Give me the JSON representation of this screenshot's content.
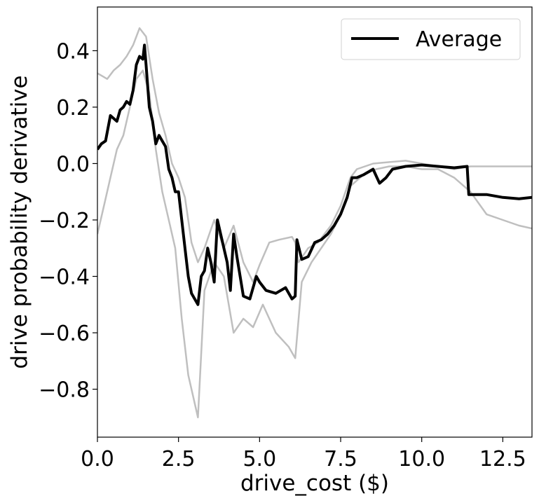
{
  "chart_data": {
    "type": "line",
    "xlabel": "drive_cost ($)",
    "ylabel": "drive probability derivative",
    "xlim": [
      0,
      13.4
    ],
    "ylim": [
      -0.97,
      0.555
    ],
    "xticks": [
      0.0,
      2.5,
      5.0,
      7.5,
      10.0,
      12.5
    ],
    "xtick_labels": [
      "0.0",
      "2.5",
      "5.0",
      "7.5",
      "10.0",
      "12.5"
    ],
    "yticks": [
      0.4,
      0.2,
      0.0,
      -0.2,
      -0.4,
      -0.6,
      -0.8
    ],
    "ytick_labels": [
      "0.4",
      "0.2",
      "0.0",
      "−0.2",
      "−0.4",
      "−0.6",
      "−0.8"
    ],
    "legend": {
      "position": "top-right",
      "entries": [
        "Average"
      ]
    },
    "grid": false,
    "colors": {
      "average": "#000000",
      "individual": "#bfbfbf"
    },
    "series": [
      {
        "name": "Average",
        "role": "average",
        "x": [
          0.0,
          0.12,
          0.25,
          0.4,
          0.5,
          0.6,
          0.7,
          0.8,
          0.9,
          1.0,
          1.1,
          1.2,
          1.3,
          1.4,
          1.45,
          1.5,
          1.6,
          1.7,
          1.8,
          1.9,
          2.0,
          2.1,
          2.2,
          2.3,
          2.4,
          2.5,
          2.6,
          2.7,
          2.8,
          2.9,
          3.0,
          3.1,
          3.2,
          3.3,
          3.4,
          3.5,
          3.6,
          3.7,
          3.8,
          3.9,
          4.0,
          4.1,
          4.2,
          4.3,
          4.5,
          4.7,
          4.9,
          5.0,
          5.2,
          5.5,
          5.8,
          6.0,
          6.1,
          6.15,
          6.3,
          6.5,
          6.7,
          6.9,
          7.1,
          7.3,
          7.5,
          7.7,
          7.85,
          8.0,
          8.2,
          8.5,
          8.7,
          8.9,
          9.1,
          9.5,
          10.0,
          10.5,
          11.0,
          11.4,
          11.45,
          12.0,
          12.5,
          13.0,
          13.4
        ],
        "y": [
          0.05,
          0.07,
          0.08,
          0.17,
          0.16,
          0.15,
          0.19,
          0.2,
          0.22,
          0.21,
          0.26,
          0.35,
          0.38,
          0.37,
          0.42,
          0.35,
          0.2,
          0.15,
          0.07,
          0.1,
          0.08,
          0.06,
          -0.02,
          -0.05,
          -0.1,
          -0.1,
          -0.2,
          -0.3,
          -0.4,
          -0.46,
          -0.48,
          -0.5,
          -0.4,
          -0.38,
          -0.3,
          -0.35,
          -0.42,
          -0.2,
          -0.25,
          -0.3,
          -0.35,
          -0.45,
          -0.25,
          -0.33,
          -0.47,
          -0.48,
          -0.4,
          -0.42,
          -0.45,
          -0.46,
          -0.44,
          -0.48,
          -0.47,
          -0.27,
          -0.34,
          -0.33,
          -0.28,
          -0.27,
          -0.25,
          -0.22,
          -0.18,
          -0.12,
          -0.05,
          -0.05,
          -0.04,
          -0.02,
          -0.07,
          -0.05,
          -0.02,
          -0.01,
          -0.005,
          -0.01,
          -0.015,
          -0.01,
          -0.11,
          -0.11,
          -0.12,
          -0.125,
          -0.12
        ]
      },
      {
        "name": "",
        "role": "individual",
        "x": [
          0.0,
          0.15,
          0.3,
          0.5,
          0.7,
          0.9,
          1.1,
          1.3,
          1.5,
          1.7,
          1.9,
          2.1,
          2.3,
          2.5,
          2.7,
          2.9,
          3.1,
          3.3,
          3.6,
          3.9,
          4.2,
          4.5,
          4.8,
          5.0,
          5.3,
          5.6,
          6.0,
          6.1,
          6.2,
          6.5,
          6.8,
          7.2,
          7.5,
          7.8,
          8.0,
          8.5,
          9.0,
          9.5,
          10.0,
          10.5,
          11.0,
          11.5,
          12.0,
          12.5,
          13.0,
          13.4
        ],
        "y": [
          0.32,
          0.31,
          0.3,
          0.33,
          0.35,
          0.38,
          0.42,
          0.48,
          0.45,
          0.3,
          0.18,
          0.1,
          0.0,
          -0.05,
          -0.12,
          -0.28,
          -0.35,
          -0.3,
          -0.2,
          -0.3,
          -0.22,
          -0.35,
          -0.42,
          -0.36,
          -0.28,
          -0.27,
          -0.26,
          -0.28,
          -0.35,
          -0.3,
          -0.28,
          -0.22,
          -0.15,
          -0.05,
          -0.02,
          0.0,
          0.005,
          0.01,
          0.0,
          -0.01,
          -0.02,
          -0.01,
          -0.01,
          -0.01,
          -0.01,
          -0.01
        ]
      },
      {
        "name": "",
        "role": "individual",
        "x": [
          0.0,
          0.2,
          0.4,
          0.6,
          0.8,
          1.0,
          1.2,
          1.4,
          1.6,
          1.8,
          2.0,
          2.2,
          2.4,
          2.6,
          2.8,
          3.0,
          3.1,
          3.3,
          3.6,
          3.9,
          4.2,
          4.5,
          4.8,
          5.1,
          5.5,
          5.9,
          6.1,
          6.3,
          6.6,
          6.9,
          7.2,
          7.5,
          7.8,
          8.2,
          8.6,
          9.0,
          9.5,
          10.0,
          10.5,
          11.0,
          11.5,
          12.0,
          12.5,
          13.0,
          13.4
        ],
        "y": [
          -0.25,
          -0.15,
          -0.05,
          0.05,
          0.1,
          0.2,
          0.3,
          0.33,
          0.25,
          0.05,
          -0.1,
          -0.2,
          -0.3,
          -0.55,
          -0.75,
          -0.85,
          -0.9,
          -0.45,
          -0.35,
          -0.4,
          -0.6,
          -0.55,
          -0.58,
          -0.5,
          -0.6,
          -0.65,
          -0.69,
          -0.42,
          -0.35,
          -0.3,
          -0.25,
          -0.18,
          -0.08,
          -0.04,
          -0.02,
          -0.01,
          -0.01,
          -0.02,
          -0.02,
          -0.05,
          -0.1,
          -0.18,
          -0.2,
          -0.22,
          -0.23
        ]
      }
    ]
  }
}
